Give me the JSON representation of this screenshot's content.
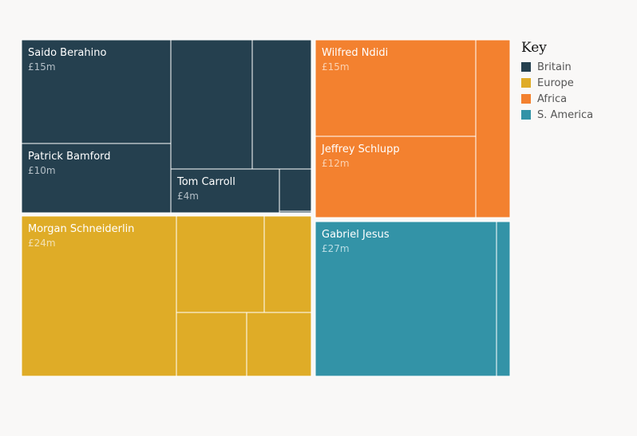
{
  "chart_data": {
    "type": "treemap",
    "legend": {
      "title": "Key",
      "placement": "top-right",
      "entries": [
        {
          "label": "Britain",
          "color": "#25404f"
        },
        {
          "label": "Europe",
          "color": "#dfac27"
        },
        {
          "label": "Africa",
          "color": "#f3812f"
        },
        {
          "label": "S. America",
          "color": "#3393a7"
        }
      ]
    },
    "groups": [
      {
        "name": "Britain",
        "color": "#25404f",
        "items": [
          {
            "name": "Saido Berahino",
            "label": "£15m",
            "value": 15
          },
          {
            "name": "Patrick Bamford",
            "label": "£10m",
            "value": 10
          },
          {
            "name": "",
            "label": "",
            "value": 11
          },
          {
            "name": "",
            "label": "",
            "value": 8.5
          },
          {
            "name": "Tom Carroll",
            "label": "£4m",
            "value": 4
          },
          {
            "name": "",
            "label": "",
            "value": 1.2
          },
          {
            "name": "",
            "label": "",
            "value": 0.15
          }
        ]
      },
      {
        "name": "Europe",
        "color": "#dfac27",
        "items": [
          {
            "name": "Morgan Schneiderlin",
            "label": "£24m",
            "value": 24
          },
          {
            "name": "",
            "label": "",
            "value": 6
          },
          {
            "name": "",
            "label": "",
            "value": 3.5
          },
          {
            "name": "",
            "label": "",
            "value": 4.3
          },
          {
            "name": "",
            "label": "",
            "value": 4.2
          }
        ]
      },
      {
        "name": "Africa",
        "color": "#f3812f",
        "items": [
          {
            "name": "Wilfred Ndidi",
            "label": "£15m",
            "value": 15
          },
          {
            "name": "Jeffrey Schlupp",
            "label": "£12m",
            "value": 12
          },
          {
            "name": "",
            "label": "",
            "value": 5.5
          }
        ]
      },
      {
        "name": "S. America",
        "color": "#3393a7",
        "items": [
          {
            "name": "Gabriel Jesus",
            "label": "£27m",
            "value": 27
          },
          {
            "name": "",
            "label": "",
            "value": 2
          }
        ]
      }
    ]
  }
}
